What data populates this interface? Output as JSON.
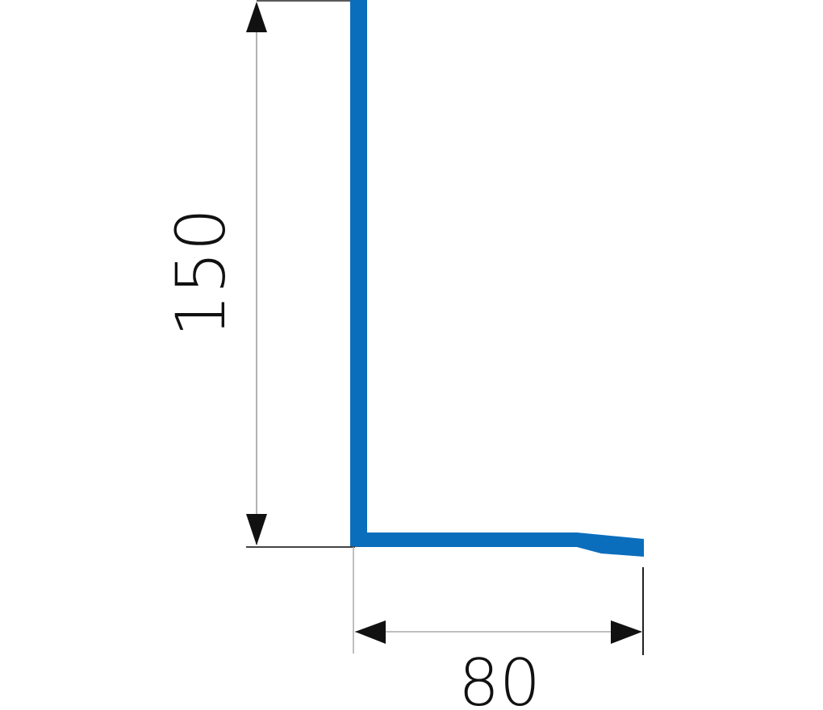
{
  "diagram": {
    "profile_color": "#0a6ebd",
    "dimension_color": "#111111",
    "dimensions": {
      "height_label": "150",
      "width_label": "80"
    }
  }
}
